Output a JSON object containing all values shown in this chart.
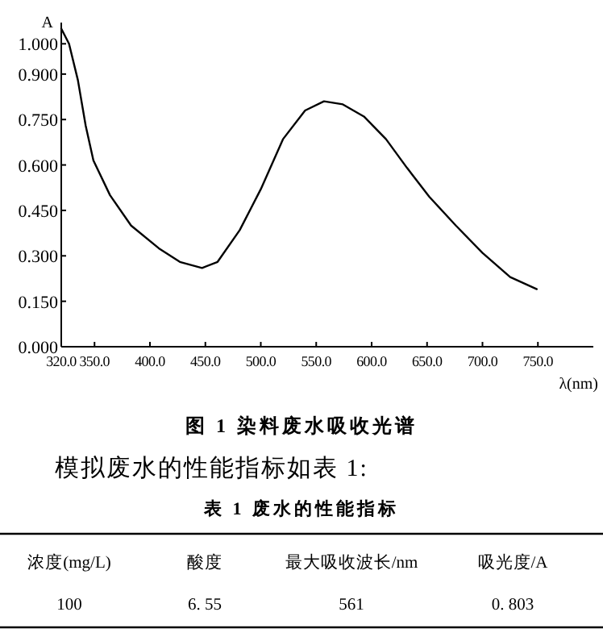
{
  "chart_data": {
    "type": "line",
    "title": "图 1  染料废水吸收光谱",
    "xlabel": "λ(nm)",
    "ylabel": "A",
    "x": [
      320,
      327,
      335,
      342,
      349,
      364,
      383,
      408,
      427,
      447,
      461,
      481,
      500,
      520,
      540,
      557,
      574,
      593,
      613,
      632,
      652,
      676,
      700,
      725,
      749
    ],
    "values": [
      1.05,
      1.0,
      0.88,
      0.73,
      0.615,
      0.5,
      0.4,
      0.325,
      0.28,
      0.26,
      0.28,
      0.385,
      0.52,
      0.685,
      0.78,
      0.81,
      0.8,
      0.76,
      0.685,
      0.59,
      0.495,
      0.4,
      0.31,
      0.23,
      0.19
    ],
    "color": "#000000",
    "xlim": [
      320,
      800
    ],
    "ylim": [
      0,
      1.07
    ],
    "xticks": [
      {
        "value": 320,
        "label": "320.0"
      },
      {
        "value": 350,
        "label": "350.0"
      },
      {
        "value": 400,
        "label": "400.0"
      },
      {
        "value": 450,
        "label": "450.0"
      },
      {
        "value": 500,
        "label": "500.0"
      },
      {
        "value": 550,
        "label": "550.0"
      },
      {
        "value": 600,
        "label": "600.0"
      },
      {
        "value": 650,
        "label": "650.0"
      },
      {
        "value": 700,
        "label": "700.0"
      },
      {
        "value": 750,
        "label": "750.0"
      }
    ],
    "yticks": [
      {
        "value": 0,
        "label": "0.000"
      },
      {
        "value": 0.15,
        "label": "0.150"
      },
      {
        "value": 0.3,
        "label": "0.300"
      },
      {
        "value": 0.45,
        "label": "0.450"
      },
      {
        "value": 0.6,
        "label": "0.600"
      },
      {
        "value": 0.75,
        "label": "0.750"
      },
      {
        "value": 0.9,
        "label": "0.900"
      },
      {
        "value": 1.0,
        "label": "1.000"
      }
    ],
    "annotations": [
      "模拟废水的性能指标如表 1:",
      "表 1  废水的性能指标",
      "浓度(mg/L)",
      "酸度",
      "最大吸收波长/nm",
      "吸光度/A",
      "100",
      "6. 55",
      "561",
      "0. 803"
    ]
  }
}
